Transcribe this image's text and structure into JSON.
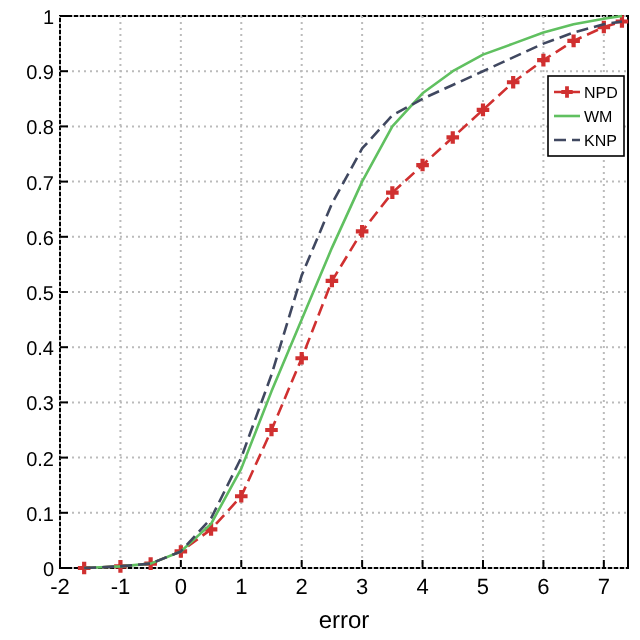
{
  "chart_data": {
    "type": "line",
    "xlabel": "error",
    "xlim": [
      -2,
      7.4
    ],
    "xticks": [
      -2,
      -1,
      0,
      1,
      2,
      3,
      4,
      5,
      6,
      7
    ],
    "ylim": [
      0,
      1
    ],
    "yticks": [
      0,
      0.1,
      0.2,
      0.3,
      0.4,
      0.5,
      0.6,
      0.7,
      0.8,
      0.9,
      1
    ],
    "grid": true,
    "legend": "top right",
    "x": [
      -1.6,
      -1,
      -0.5,
      0,
      0.5,
      1,
      1.5,
      2,
      2.5,
      3,
      3.5,
      4,
      4.5,
      5,
      5.5,
      6,
      6.5,
      7,
      7.3
    ],
    "series": [
      {
        "name": "NPD",
        "color": "#d03030",
        "line_style": "dashed",
        "marker": "cross",
        "values": [
          0,
          0.003,
          0.008,
          0.03,
          0.07,
          0.13,
          0.25,
          0.38,
          0.52,
          0.61,
          0.68,
          0.73,
          0.78,
          0.83,
          0.88,
          0.92,
          0.955,
          0.98,
          0.99
        ]
      },
      {
        "name": "WM",
        "color": "#60c060",
        "line_style": "solid",
        "marker": "none",
        "values": [
          0,
          0.003,
          0.008,
          0.03,
          0.08,
          0.18,
          0.32,
          0.45,
          0.58,
          0.7,
          0.8,
          0.86,
          0.9,
          0.93,
          0.95,
          0.97,
          0.985,
          0.995,
          1
        ]
      },
      {
        "name": "KNP",
        "color": "#404860",
        "line_style": "dashed",
        "marker": "none",
        "values": [
          0,
          0.003,
          0.008,
          0.03,
          0.09,
          0.2,
          0.35,
          0.53,
          0.66,
          0.76,
          0.82,
          0.85,
          0.875,
          0.9,
          0.925,
          0.95,
          0.97,
          0.985,
          0.99
        ]
      }
    ]
  }
}
